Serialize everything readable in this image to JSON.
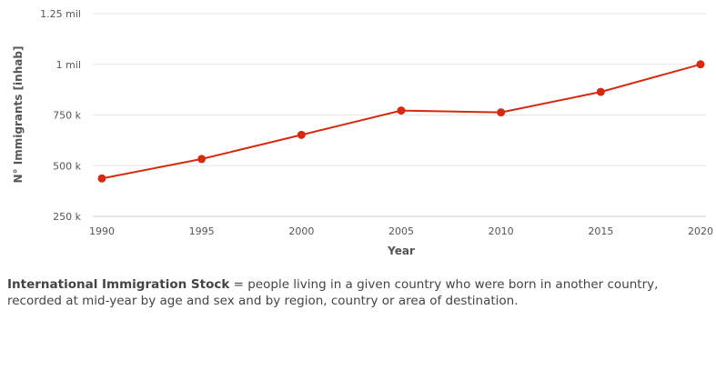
{
  "chart_data": {
    "type": "line",
    "x": [
      1990,
      1995,
      2000,
      2005,
      2010,
      2015,
      2020
    ],
    "series": [
      {
        "values": [
          437000,
          533000,
          652000,
          772000,
          763000,
          864000,
          1000000
        ],
        "color": "#d42a12"
      }
    ],
    "xlabel": "Year",
    "ylabel": "N° Immigrants [inhab]",
    "ylim": [
      250000,
      1250000
    ],
    "y_ticks": [
      {
        "value": 250000,
        "label": "250 k"
      },
      {
        "value": 500000,
        "label": "500 k"
      },
      {
        "value": 750000,
        "label": "750 k"
      },
      {
        "value": 1000000,
        "label": "1 mil"
      },
      {
        "value": 1250000,
        "label": "1.25 mil"
      }
    ],
    "x_ticks": [
      "1990",
      "1995",
      "2000",
      "2005",
      "2010",
      "2015",
      "2020"
    ],
    "grid": true,
    "legend": "none"
  },
  "caption": {
    "term": "International Immigration Stock",
    "definition": " = people living in a given country who were born in another country, recorded at mid-year by age and sex and by region, country or area of destination."
  }
}
